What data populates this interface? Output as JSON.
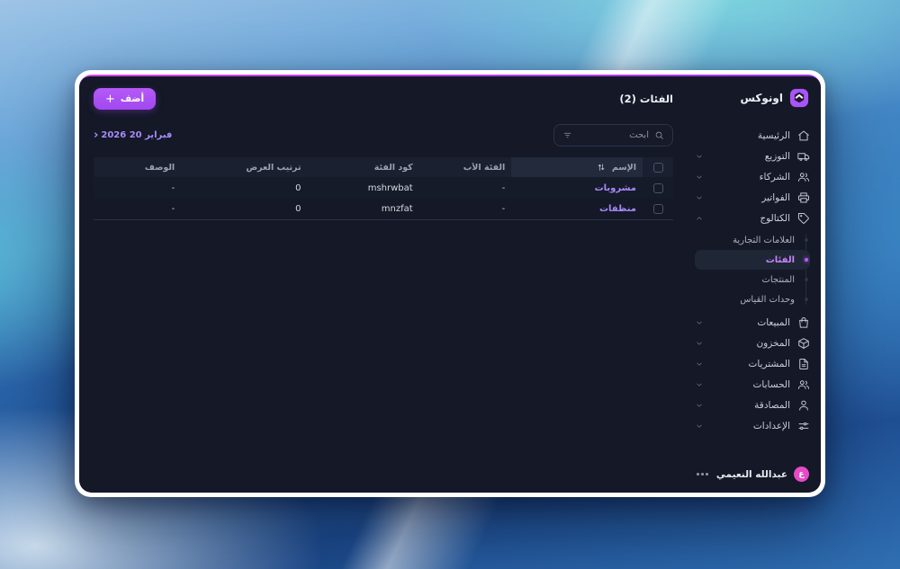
{
  "app": {
    "brand": "اونوكس"
  },
  "colors": {
    "accent": "#a855f7",
    "accent_line_start": "#d444f2",
    "accent_line_end": "#9b30f5",
    "link_purple": "#a78bfa",
    "active_purple": "#c983fb",
    "avatar_pink": "#e64ac6",
    "app_bg": "#141827",
    "table_header_bg": "#1a2030",
    "table_header_highlight_bg": "#232a3c"
  },
  "sidebar": {
    "items": [
      {
        "label": "الرئيسية",
        "icon": "home-icon",
        "expandable": false
      },
      {
        "label": "التوزيع",
        "icon": "truck-icon",
        "expandable": true
      },
      {
        "label": "الشركاء",
        "icon": "users-icon",
        "expandable": true
      },
      {
        "label": "الفواتير",
        "icon": "printer-icon",
        "expandable": true
      },
      {
        "label": "الكتالوج",
        "icon": "tag-icon",
        "expandable": true,
        "expanded": true,
        "children": [
          {
            "label": "العلامات التجارية",
            "active": false
          },
          {
            "label": "الفئات",
            "active": true
          },
          {
            "label": "المنتجات",
            "active": false
          },
          {
            "label": "وحدات القياس",
            "active": false
          }
        ]
      },
      {
        "label": "المبيعات",
        "icon": "bag-icon",
        "expandable": true
      },
      {
        "label": "المخزون",
        "icon": "package-icon",
        "expandable": true
      },
      {
        "label": "المشتريات",
        "icon": "document-icon",
        "expandable": true
      },
      {
        "label": "الحسابات",
        "icon": "users-icon",
        "expandable": true
      },
      {
        "label": "المصادقة",
        "icon": "user-icon",
        "expandable": true
      },
      {
        "label": "الإعدادات",
        "icon": "sliders-icon",
        "expandable": true
      }
    ],
    "user": {
      "name": "عبدالله النعيمي",
      "avatar_letter": "ع",
      "menu_icon": "ellipsis-icon"
    }
  },
  "header": {
    "title": "الفئات (2)",
    "add_label": "أضف",
    "add_plus": "+"
  },
  "toolbar": {
    "search_placeholder": "ابحث",
    "search_icon": "search-icon",
    "filter_icon": "filter-icon",
    "date_label": "فبراير 20 2026",
    "date_chevron": "‹"
  },
  "table": {
    "columns": [
      {
        "key": "name",
        "label": "الإسم",
        "sorted": true
      },
      {
        "key": "parent",
        "label": "الفئة الأب"
      },
      {
        "key": "code",
        "label": "كود الفئة"
      },
      {
        "key": "order",
        "label": "ترتيب العرض"
      },
      {
        "key": "desc",
        "label": "الوصف"
      }
    ],
    "sort_icon": "sort-icon",
    "rows": [
      {
        "name": "مشروبات",
        "parent": "-",
        "code": "mshrwbat",
        "order": "0",
        "desc": "-"
      },
      {
        "name": "منظفات",
        "parent": "-",
        "code": "mnzfat",
        "order": "0",
        "desc": "-"
      }
    ]
  }
}
